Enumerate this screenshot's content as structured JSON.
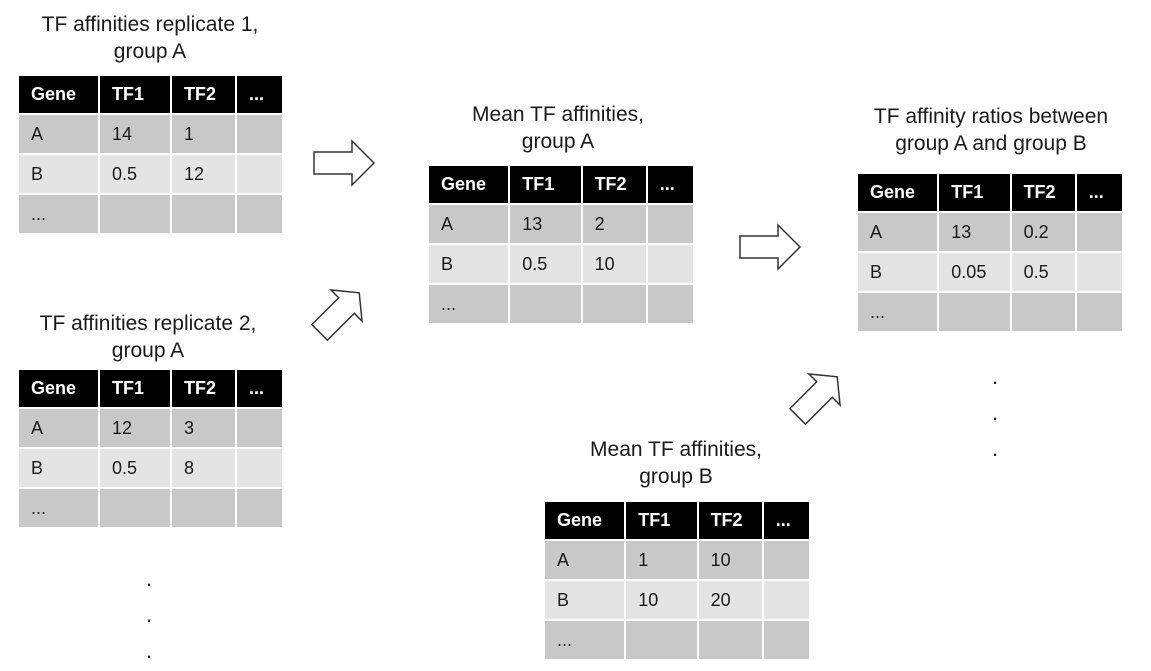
{
  "tables": [
    {
      "id": "rep1",
      "title_lines": [
        "TF affinities replicate 1,",
        "group A"
      ],
      "headers": [
        "Gene",
        "TF1",
        "TF2",
        "..."
      ],
      "rows": [
        [
          "A",
          "14",
          "1",
          ""
        ],
        [
          "B",
          "0.5",
          "12",
          ""
        ],
        [
          "...",
          "",
          "",
          ""
        ]
      ]
    },
    {
      "id": "rep2",
      "title_lines": [
        "TF affinities replicate 2,",
        "group A"
      ],
      "headers": [
        "Gene",
        "TF1",
        "TF2",
        "..."
      ],
      "rows": [
        [
          "A",
          "12",
          "3",
          ""
        ],
        [
          "B",
          "0.5",
          "8",
          ""
        ],
        [
          "...",
          "",
          "",
          ""
        ]
      ]
    },
    {
      "id": "meanA",
      "title_lines": [
        "Mean TF affinities,",
        "group A"
      ],
      "headers": [
        "Gene",
        "TF1",
        "TF2",
        "..."
      ],
      "rows": [
        [
          "A",
          "13",
          "2",
          ""
        ],
        [
          "B",
          "0.5",
          "10",
          ""
        ],
        [
          "...",
          "",
          "",
          ""
        ]
      ]
    },
    {
      "id": "meanB",
      "title_lines": [
        "Mean TF affinities,",
        "group B"
      ],
      "headers": [
        "Gene",
        "TF1",
        "TF2",
        "..."
      ],
      "rows": [
        [
          "A",
          "1",
          "10",
          ""
        ],
        [
          "B",
          "10",
          "20",
          ""
        ],
        [
          "...",
          "",
          "",
          ""
        ]
      ]
    },
    {
      "id": "ratio",
      "title_lines": [
        "TF affinity ratios between",
        "group A and group B"
      ],
      "headers": [
        "Gene",
        "TF1",
        "TF2",
        "..."
      ],
      "rows": [
        [
          "A",
          "13",
          "0.2",
          ""
        ],
        [
          "B",
          "0.05",
          "0.5",
          ""
        ],
        [
          "...",
          "",
          "",
          ""
        ]
      ]
    }
  ],
  "ellipsis_dots": [
    ".",
    ".",
    "."
  ],
  "arrows": [
    "rep1-to-meanA",
    "rep2-to-meanA",
    "meanA-to-ratio",
    "meanB-to-ratio"
  ]
}
